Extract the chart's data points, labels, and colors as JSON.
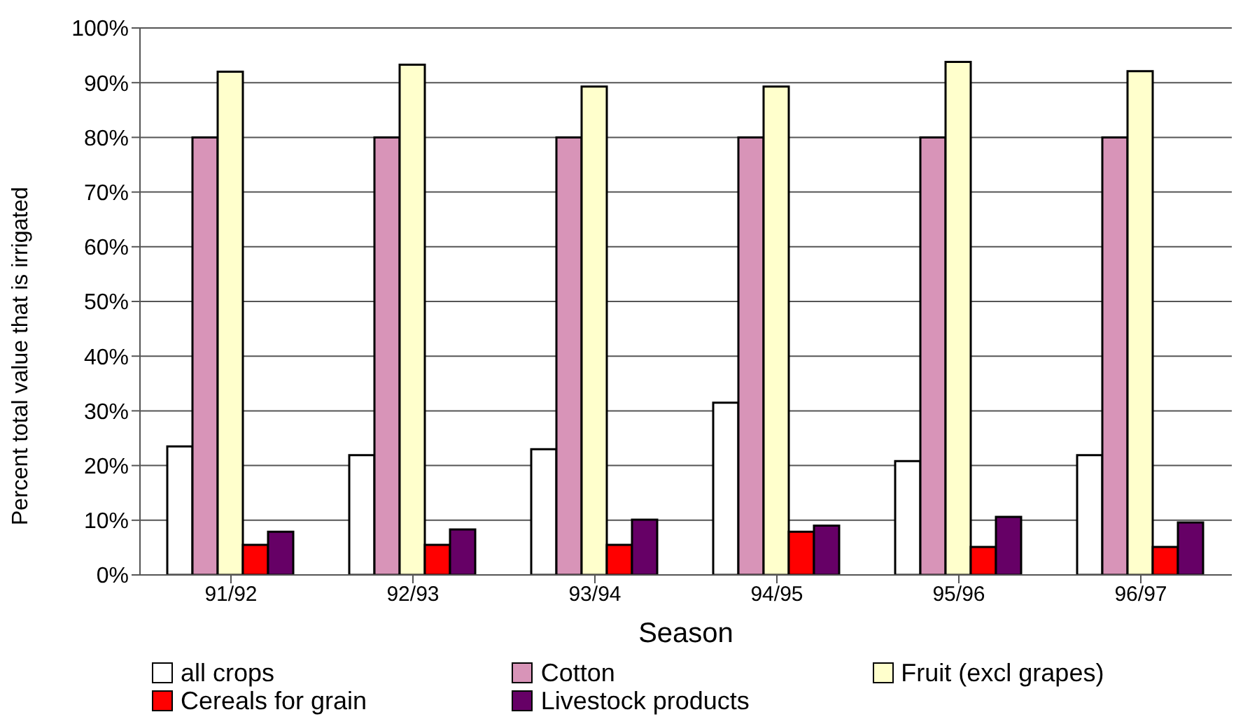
{
  "chart_data": {
    "type": "bar",
    "xlabel": "Season",
    "ylabel": "Percent total value that is irrigated",
    "categories": [
      "91/92",
      "92/93",
      "93/94",
      "94/95",
      "95/96",
      "96/97"
    ],
    "series": [
      {
        "name": "all crops",
        "color": "#ffffff",
        "values": [
          23.5,
          21.9,
          23.0,
          31.5,
          20.8,
          21.9
        ]
      },
      {
        "name": "Cotton",
        "color": "#d894b8",
        "values": [
          80,
          80,
          80,
          80,
          80,
          80
        ]
      },
      {
        "name": "Fruit (excl grapes)",
        "color": "#ffffcc",
        "values": [
          92.0,
          93.3,
          89.3,
          89.3,
          93.8,
          92.1
        ]
      },
      {
        "name": "Cereals for grain",
        "color": "#ff0000",
        "values": [
          5.5,
          5.5,
          5.5,
          7.9,
          5.1,
          5.1
        ]
      },
      {
        "name": "Livestock products",
        "color": "#660066",
        "values": [
          7.9,
          8.3,
          10.1,
          9.0,
          10.6,
          9.6
        ]
      }
    ],
    "ylim": [
      0,
      100
    ],
    "yticks": [
      {
        "value": 0,
        "label": "0%"
      },
      {
        "value": 10,
        "label": "10%"
      },
      {
        "value": 20,
        "label": "20%"
      },
      {
        "value": 30,
        "label": "30%"
      },
      {
        "value": 40,
        "label": "40%"
      },
      {
        "value": 50,
        "label": "50%"
      },
      {
        "value": 60,
        "label": "60%"
      },
      {
        "value": 70,
        "label": "70%"
      },
      {
        "value": 80,
        "label": "80%"
      },
      {
        "value": 90,
        "label": "90%"
      },
      {
        "value": 100,
        "label": "100%"
      }
    ],
    "grid": "y",
    "legend": "bottom"
  }
}
